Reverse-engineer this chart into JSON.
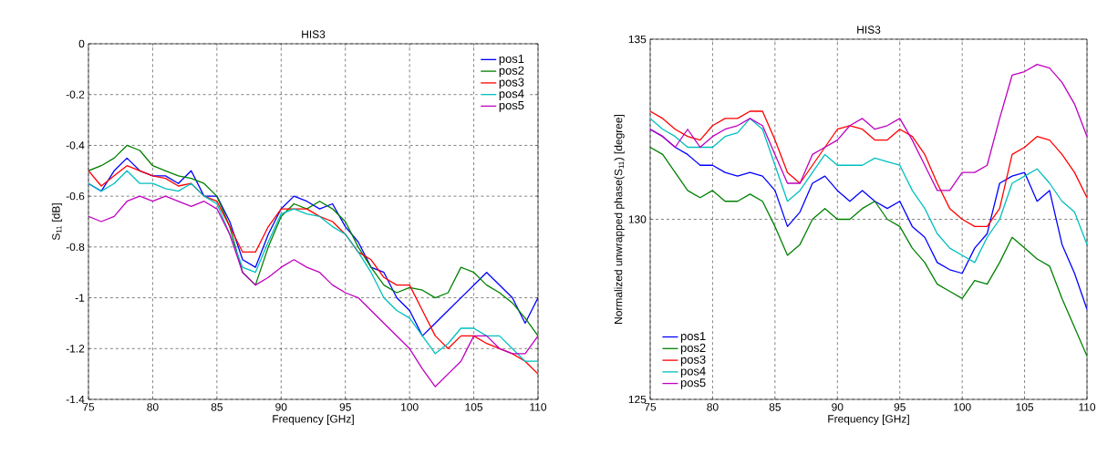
{
  "chart_data": [
    {
      "type": "line",
      "title": "HIS3",
      "xlabel": "Frequency [GHz]",
      "ylabel": "S$_{11}$ [dB]",
      "xlim": [
        75,
        110
      ],
      "ylim": [
        -1.4,
        0
      ],
      "xticks": [
        75,
        80,
        85,
        90,
        95,
        100,
        105,
        110
      ],
      "yticks": [
        -1.4,
        -1.2,
        -1,
        -0.8,
        -0.6,
        -0.4,
        -0.2,
        0
      ],
      "grid": true,
      "legend": "top right",
      "x": [
        75,
        76,
        77,
        78,
        79,
        80,
        81,
        82,
        83,
        84,
        85,
        86,
        87,
        88,
        89,
        90,
        91,
        92,
        93,
        94,
        95,
        96,
        97,
        98,
        99,
        100,
        101,
        102,
        103,
        104,
        105,
        106,
        107,
        108,
        109,
        110
      ],
      "series": [
        {
          "name": "pos1",
          "color": "#0000ff",
          "values": [
            -0.55,
            -0.58,
            -0.5,
            -0.45,
            -0.5,
            -0.52,
            -0.52,
            -0.55,
            -0.5,
            -0.6,
            -0.6,
            -0.7,
            -0.85,
            -0.88,
            -0.75,
            -0.65,
            -0.6,
            -0.62,
            -0.65,
            -0.63,
            -0.72,
            -0.78,
            -0.88,
            -0.9,
            -1.0,
            -1.05,
            -1.15,
            -1.1,
            -1.05,
            -1.0,
            -0.95,
            -0.9,
            -0.95,
            -1.0,
            -1.1,
            -1.0
          ]
        },
        {
          "name": "pos2",
          "color": "#008000",
          "values": [
            -0.5,
            -0.48,
            -0.45,
            -0.4,
            -0.42,
            -0.48,
            -0.5,
            -0.52,
            -0.53,
            -0.55,
            -0.6,
            -0.72,
            -0.9,
            -0.95,
            -0.8,
            -0.68,
            -0.63,
            -0.65,
            -0.62,
            -0.65,
            -0.7,
            -0.8,
            -0.88,
            -0.95,
            -0.98,
            -0.96,
            -0.97,
            -1.0,
            -0.98,
            -0.88,
            -0.9,
            -0.95,
            -0.98,
            -1.02,
            -1.08,
            -1.15
          ]
        },
        {
          "name": "pos3",
          "color": "#ff0000",
          "values": [
            -0.5,
            -0.56,
            -0.52,
            -0.48,
            -0.5,
            -0.52,
            -0.53,
            -0.56,
            -0.55,
            -0.6,
            -0.62,
            -0.72,
            -0.82,
            -0.82,
            -0.72,
            -0.65,
            -0.65,
            -0.65,
            -0.68,
            -0.7,
            -0.75,
            -0.82,
            -0.85,
            -0.92,
            -0.95,
            -0.95,
            -1.05,
            -1.15,
            -1.2,
            -1.15,
            -1.15,
            -1.18,
            -1.2,
            -1.22,
            -1.25,
            -1.3
          ]
        },
        {
          "name": "pos4",
          "color": "#00bfbf",
          "values": [
            -0.55,
            -0.58,
            -0.55,
            -0.5,
            -0.55,
            -0.55,
            -0.57,
            -0.58,
            -0.55,
            -0.6,
            -0.63,
            -0.75,
            -0.88,
            -0.9,
            -0.78,
            -0.67,
            -0.65,
            -0.67,
            -0.68,
            -0.72,
            -0.75,
            -0.82,
            -0.9,
            -1.0,
            -1.05,
            -1.08,
            -1.15,
            -1.22,
            -1.18,
            -1.12,
            -1.12,
            -1.15,
            -1.15,
            -1.2,
            -1.25,
            -1.25
          ]
        },
        {
          "name": "pos5",
          "color": "#bf00bf",
          "values": [
            -0.68,
            -0.7,
            -0.68,
            -0.62,
            -0.6,
            -0.62,
            -0.6,
            -0.62,
            -0.64,
            -0.62,
            -0.65,
            -0.75,
            -0.9,
            -0.95,
            -0.92,
            -0.88,
            -0.85,
            -0.88,
            -0.9,
            -0.95,
            -0.98,
            -1.0,
            -1.05,
            -1.1,
            -1.15,
            -1.2,
            -1.28,
            -1.35,
            -1.3,
            -1.25,
            -1.15,
            -1.15,
            -1.2,
            -1.22,
            -1.22,
            -1.15
          ]
        }
      ]
    },
    {
      "type": "line",
      "title": "HIS3",
      "xlabel": "Frequency [GHz]",
      "ylabel": "Normalized unwrapped phase(S$_{11}$) [degree]",
      "xlim": [
        75,
        110
      ],
      "ylim": [
        125,
        135
      ],
      "xticks": [
        75,
        80,
        85,
        90,
        95,
        100,
        105,
        110
      ],
      "yticks": [
        125,
        130,
        135
      ],
      "grid": true,
      "legend": "bottom left",
      "x": [
        75,
        76,
        77,
        78,
        79,
        80,
        81,
        82,
        83,
        84,
        85,
        86,
        87,
        88,
        89,
        90,
        91,
        92,
        93,
        94,
        95,
        96,
        97,
        98,
        99,
        100,
        101,
        102,
        103,
        104,
        105,
        106,
        107,
        108,
        109,
        110
      ],
      "series": [
        {
          "name": "pos1",
          "color": "#0000ff",
          "values": [
            132.5,
            132.3,
            132,
            131.8,
            131.5,
            131.5,
            131.3,
            131.2,
            131.3,
            131.2,
            130.8,
            129.8,
            130.2,
            131,
            131.2,
            130.8,
            130.5,
            130.8,
            130.5,
            130.3,
            130.5,
            129.8,
            129.5,
            128.8,
            128.6,
            128.5,
            129.2,
            129.6,
            131,
            131.2,
            131.3,
            130.5,
            130.8,
            129.3,
            128.5,
            127.5
          ]
        },
        {
          "name": "pos2",
          "color": "#008000",
          "values": [
            132,
            131.8,
            131.3,
            130.8,
            130.6,
            130.8,
            130.5,
            130.5,
            130.7,
            130.5,
            129.8,
            129,
            129.3,
            130,
            130.3,
            130,
            130,
            130.3,
            130.5,
            130,
            129.8,
            129.2,
            128.8,
            128.2,
            128,
            127.8,
            128.3,
            128.2,
            128.8,
            129.5,
            129.2,
            128.9,
            128.7,
            127.8,
            127,
            126.2
          ]
        },
        {
          "name": "pos3",
          "color": "#ff0000",
          "values": [
            133,
            132.8,
            132.5,
            132.3,
            132.2,
            132.6,
            132.8,
            132.8,
            133,
            133,
            132.2,
            131.3,
            131,
            131.5,
            132,
            132.5,
            132.6,
            132.5,
            132.2,
            132.2,
            132.5,
            132.3,
            131.8,
            131,
            130.3,
            130,
            129.8,
            129.8,
            130.3,
            131.8,
            132,
            132.3,
            132.2,
            131.8,
            131.3,
            130.6
          ]
        },
        {
          "name": "pos4",
          "color": "#00bfbf",
          "values": [
            132.8,
            132.5,
            132.3,
            132,
            132,
            132,
            132.3,
            132.4,
            132.8,
            132.5,
            131.5,
            130.5,
            130.8,
            131.3,
            131.8,
            131.5,
            131.5,
            131.5,
            131.7,
            131.6,
            131.5,
            130.8,
            130.3,
            129.6,
            129.2,
            129,
            128.8,
            129.5,
            130,
            131,
            131.2,
            131.4,
            131,
            130.5,
            130.2,
            129.3
          ]
        },
        {
          "name": "pos5",
          "color": "#bf00bf",
          "values": [
            132.5,
            132.3,
            132,
            132.5,
            132,
            132.3,
            132.5,
            132.6,
            132.8,
            132.6,
            131.8,
            131,
            131,
            131.8,
            132,
            132.2,
            132.6,
            132.8,
            132.5,
            132.6,
            132.8,
            132.2,
            131.5,
            130.8,
            130.8,
            131.3,
            131.3,
            131.5,
            132.8,
            134,
            134.1,
            134.3,
            134.2,
            133.8,
            133.2,
            132.3
          ]
        }
      ]
    }
  ]
}
